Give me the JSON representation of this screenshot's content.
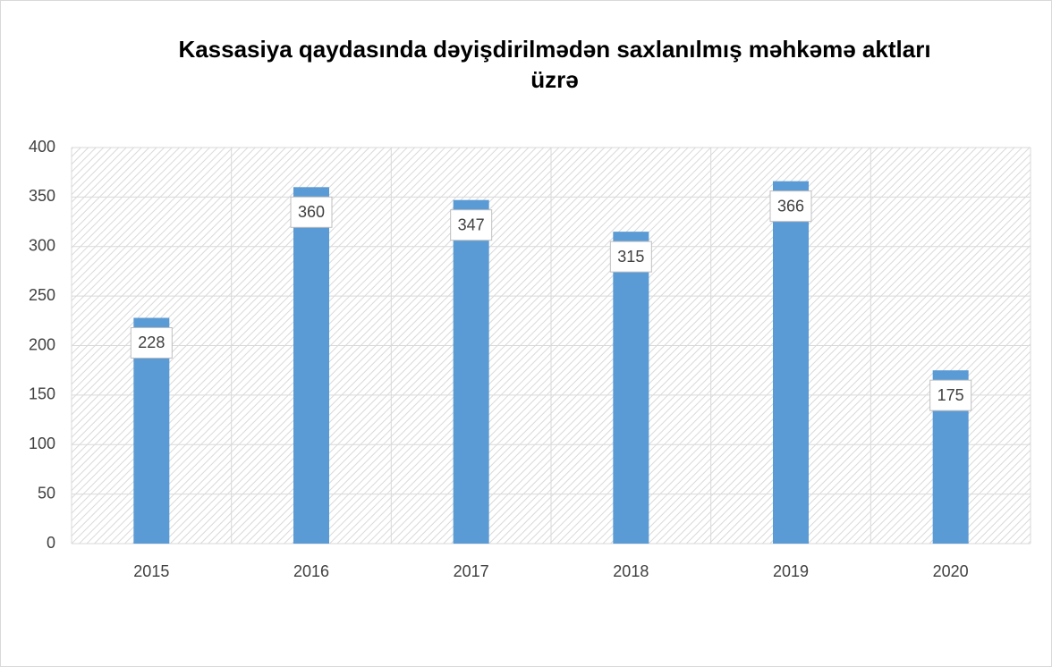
{
  "chart_data": {
    "type": "bar",
    "title": "Kassasiya qaydasında dəyişdirilmədən saxlanılmış məhkəmə aktları üzrə",
    "categories": [
      "2015",
      "2016",
      "2017",
      "2018",
      "2019",
      "2020"
    ],
    "values": [
      228,
      360,
      347,
      315,
      366,
      175
    ],
    "color": "#5b9bd5",
    "ylim": [
      0,
      400
    ],
    "yticks": [
      0,
      50,
      100,
      150,
      200,
      250,
      300,
      350,
      400
    ],
    "grid": true
  }
}
